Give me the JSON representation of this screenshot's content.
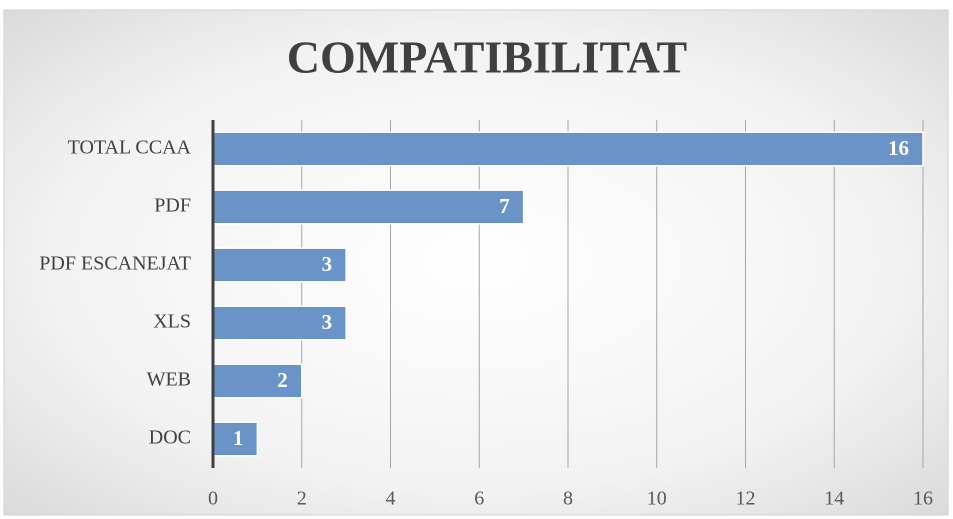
{
  "chart_data": {
    "type": "bar",
    "orientation": "horizontal",
    "title": "COMPATIBILITAT",
    "categories": [
      "TOTAL CCAA",
      "PDF",
      "PDF ESCANEJAT",
      "XLS",
      "WEB",
      "DOC"
    ],
    "values": [
      16,
      7,
      3,
      3,
      2,
      1
    ],
    "color": "#6a93c8",
    "xlim": [
      0,
      16
    ],
    "xticks": [
      0,
      2,
      4,
      6,
      8,
      10,
      12,
      14,
      16
    ],
    "grid": true
  }
}
